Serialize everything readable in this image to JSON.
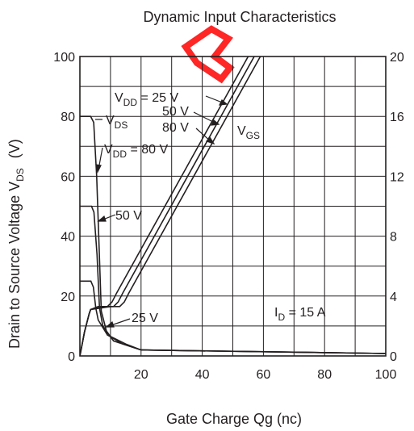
{
  "chart_data": {
    "type": "line",
    "title": "Dynamic Input Characteristics",
    "xlabel": "Gate Charge  Qg  (nc)",
    "ylabel_left_main": "Drain to Source Voltage  V",
    "ylabel_left_sub": "DS",
    "ylabel_left_unit": "(V)",
    "xlim": [
      0,
      100
    ],
    "ylim_left": [
      0,
      100
    ],
    "ylim_right": [
      0,
      20
    ],
    "x_ticks": [
      0,
      20,
      40,
      60,
      80,
      100
    ],
    "x_tick_labels": [
      "",
      "20",
      "40",
      "60",
      "80",
      "100"
    ],
    "y_left_ticks": [
      0,
      20,
      40,
      60,
      80,
      100
    ],
    "y_left_tick_labels": [
      "0",
      "20",
      "40",
      "60",
      "80",
      "100"
    ],
    "y_right_ticks": [
      0,
      4,
      8,
      12,
      16,
      20
    ],
    "y_right_tick_labels": [
      "0",
      "4",
      "8",
      "12",
      "16",
      "20"
    ],
    "grid": true,
    "watermark_color": "#ff0000",
    "vds_series": [
      {
        "vdd": 80,
        "points": [
          [
            0,
            80
          ],
          [
            3.5,
            80
          ],
          [
            4.5,
            78
          ],
          [
            5.5,
            60
          ],
          [
            6.5,
            30
          ],
          [
            7,
            15
          ],
          [
            9,
            7
          ],
          [
            15,
            4
          ],
          [
            20,
            2
          ],
          [
            100,
            0.8
          ]
        ]
      },
      {
        "vdd": 50,
        "points": [
          [
            0,
            50
          ],
          [
            3.8,
            50
          ],
          [
            4.6,
            48
          ],
          [
            5.6,
            34
          ],
          [
            6.4,
            16
          ],
          [
            7.5,
            10
          ],
          [
            11,
            5
          ],
          [
            20,
            2
          ],
          [
            100,
            0.8
          ]
        ]
      },
      {
        "vdd": 25,
        "points": [
          [
            0,
            25
          ],
          [
            3.6,
            25
          ],
          [
            4.4,
            23
          ],
          [
            5.2,
            16
          ],
          [
            6,
            12
          ],
          [
            9,
            7
          ],
          [
            14,
            4
          ],
          [
            20,
            2
          ],
          [
            100,
            0.8
          ]
        ]
      }
    ],
    "vgs_series": [
      {
        "vdd": 25,
        "points": [
          [
            0,
            0
          ],
          [
            1.5,
            1.6
          ],
          [
            3,
            2.8
          ],
          [
            3.5,
            3.1
          ],
          [
            6,
            3.3
          ],
          [
            9,
            3.3
          ],
          [
            10.5,
            3.6
          ],
          [
            12,
            4.2
          ],
          [
            55,
            20
          ]
        ]
      },
      {
        "vdd": 50,
        "points": [
          [
            0,
            0
          ],
          [
            1.5,
            1.6
          ],
          [
            3,
            2.8
          ],
          [
            3.5,
            3.1
          ],
          [
            8,
            3.3
          ],
          [
            11,
            3.3
          ],
          [
            12.5,
            3.6
          ],
          [
            14,
            4.2
          ],
          [
            57,
            20
          ]
        ]
      },
      {
        "vdd": 80,
        "points": [
          [
            0,
            0
          ],
          [
            1.5,
            1.6
          ],
          [
            3,
            2.8
          ],
          [
            3.5,
            3.1
          ],
          [
            10,
            3.3
          ],
          [
            13,
            3.3
          ],
          [
            14.5,
            3.6
          ],
          [
            16,
            4.2
          ],
          [
            59,
            20
          ]
        ]
      }
    ],
    "annotations": {
      "vdd25_main": "V",
      "vdd25_sub": "DD",
      "vdd25_val": " = 25 V",
      "vdd50": "50 V",
      "vdd80": "80 V",
      "vds_main": "V",
      "vds_sub": "DS",
      "vdd80b_main": "V",
      "vdd80b_sub": "DD",
      "vdd80b_val": " = 80 V",
      "vgs_main": "V",
      "vgs_sub": "GS",
      "vds50": "50 V",
      "vds25": "25 V",
      "id_main": "I",
      "id_sub": "D",
      "id_val": " = 15 A"
    }
  }
}
